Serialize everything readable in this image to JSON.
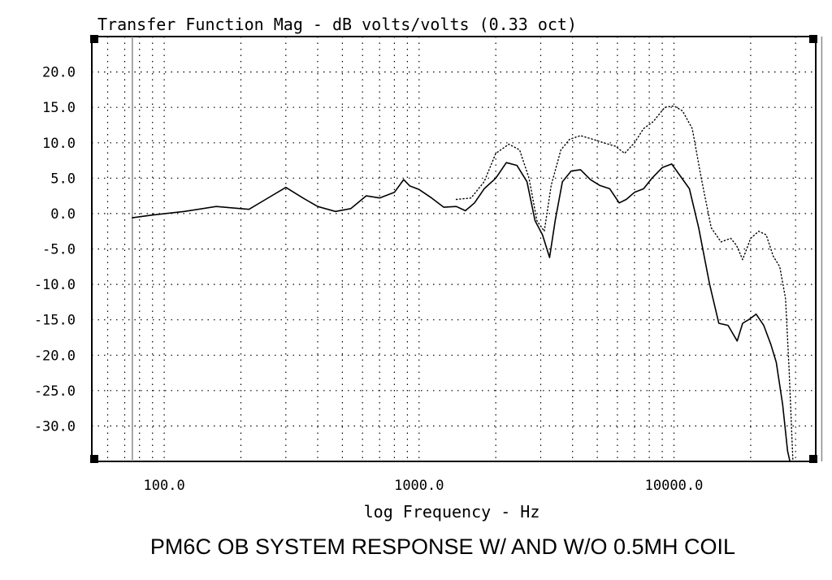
{
  "chart_data": {
    "type": "line",
    "title": "Transfer Function Mag - dB volts/volts (0.33 oct)",
    "xlabel": "log Frequency - Hz",
    "caption": "PM6C  OB SYSTEM  RESPONSE W/ AND W/O 0.5MH COIL",
    "x_scale": "log",
    "xlim": [
      52,
      36000
    ],
    "ylim": [
      -35,
      25
    ],
    "x_ticks": [
      100,
      1000,
      10000
    ],
    "x_tick_labels": [
      "100.0",
      "1000.0",
      "10000.0"
    ],
    "y_ticks": [
      20,
      15,
      10,
      5,
      0,
      -5,
      -10,
      -15,
      -20,
      -25,
      -30
    ],
    "y_tick_labels": [
      "20.0",
      "15.0",
      "10.0",
      "5.0",
      "0.0",
      "-5.0",
      "-10.0",
      "-15.0",
      "-20.0",
      "-25.0",
      "-30.0"
    ],
    "grid": true,
    "cursor_lines": [
      75,
      38000
    ],
    "series": [
      {
        "style": "solid",
        "color": "#000000",
        "x": [
          75,
          90,
          120,
          160,
          215,
          250,
          300,
          350,
          400,
          470,
          540,
          620,
          700,
          800,
          870,
          920,
          1000,
          1120,
          1250,
          1400,
          1520,
          1650,
          1800,
          2000,
          2200,
          2420,
          2650,
          2850,
          3050,
          3250,
          3420,
          3650,
          3950,
          4300,
          4700,
          5100,
          5600,
          6100,
          6500,
          7000,
          7600,
          8200,
          9000,
          9800,
          10500,
          11500,
          12500,
          13800,
          15000,
          16300,
          17700,
          18600,
          19800,
          21000,
          22500,
          24000,
          25200,
          26700,
          27900,
          28500
        ],
        "y": [
          -0.6,
          -0.2,
          0.3,
          1.0,
          0.6,
          2.0,
          3.7,
          2.2,
          1.0,
          0.3,
          0.7,
          2.5,
          2.2,
          3.0,
          4.8,
          3.9,
          3.4,
          2.2,
          0.9,
          1.0,
          0.4,
          1.5,
          3.5,
          5.0,
          7.2,
          6.8,
          4.5,
          -1.0,
          -3.0,
          -6.2,
          -1.0,
          4.5,
          6.0,
          6.2,
          4.8,
          4.0,
          3.5,
          1.5,
          2.0,
          3.0,
          3.5,
          5.0,
          6.5,
          7.0,
          5.5,
          3.5,
          -2.0,
          -10.0,
          -15.5,
          -15.8,
          -18.0,
          -15.5,
          -14.9,
          -14.2,
          -15.8,
          -18.5,
          -21.0,
          -27.0,
          -33.5,
          -35.0
        ]
      },
      {
        "style": "dotted",
        "color": "#000000",
        "x": [
          1400,
          1600,
          1800,
          2000,
          2250,
          2480,
          2700,
          2900,
          3100,
          3300,
          3600,
          3900,
          4300,
          4800,
          5300,
          5900,
          6400,
          7000,
          7600,
          8300,
          9200,
          10000,
          10800,
          11800,
          12800,
          14000,
          15300,
          16700,
          17600,
          18600,
          20000,
          21500,
          23000,
          24500,
          26000,
          27400,
          28300,
          29300
        ],
        "y": [
          2.0,
          2.2,
          4.5,
          8.5,
          9.8,
          9.0,
          5.0,
          -1.0,
          -2.5,
          4.0,
          9.0,
          10.5,
          11.0,
          10.5,
          10.0,
          9.5,
          8.5,
          10.0,
          12.0,
          13.0,
          15.0,
          15.2,
          14.5,
          12.0,
          5.0,
          -2.0,
          -4.0,
          -3.5,
          -4.5,
          -6.5,
          -3.5,
          -2.5,
          -3.0,
          -6.0,
          -7.5,
          -12.0,
          -22.0,
          -35.0
        ]
      }
    ]
  }
}
